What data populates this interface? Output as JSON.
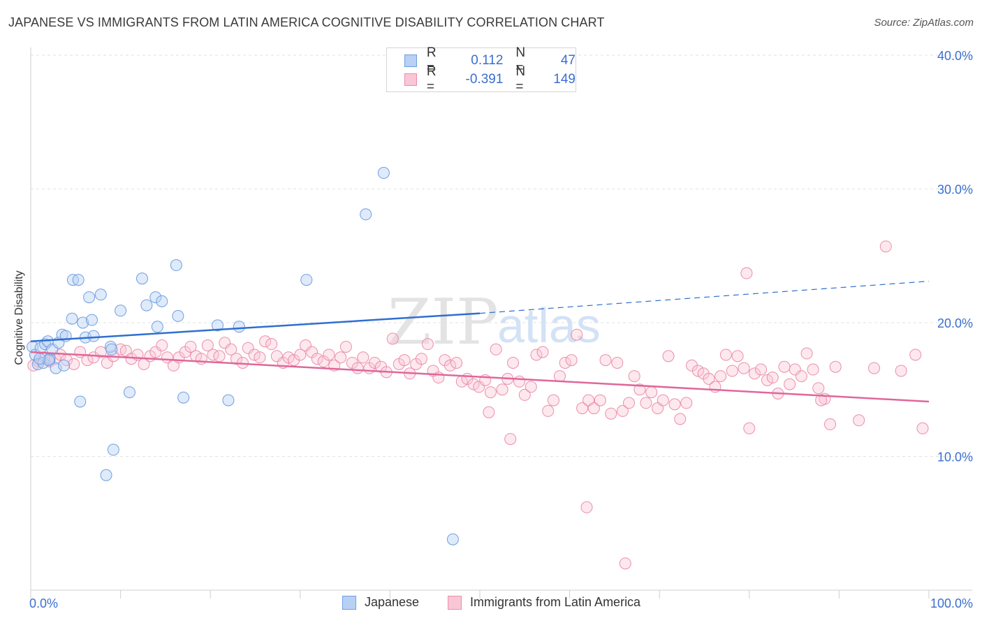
{
  "title": "JAPANESE VS IMMIGRANTS FROM LATIN AMERICA COGNITIVE DISABILITY CORRELATION CHART",
  "source": "Source: ZipAtlas.com",
  "watermark": {
    "zip": "ZIP",
    "atlas": "atlas"
  },
  "legend": {
    "rows": [
      {
        "r_label": "R =",
        "r_value": "0.112",
        "n_label": "N =",
        "n_value": "47",
        "fill": "#b8d0f4",
        "stroke": "#6f9fe0"
      },
      {
        "r_label": "R =",
        "r_value": "-0.391",
        "n_label": "N =",
        "n_value": "149",
        "fill": "#f9c6d5",
        "stroke": "#ea8eac"
      }
    ]
  },
  "bottom_legend": [
    {
      "label": "Japanese",
      "fill": "#b8d0f4",
      "stroke": "#6f9fe0"
    },
    {
      "label": "Immigrants from Latin America",
      "fill": "#f9c6d5",
      "stroke": "#ea8eac"
    }
  ],
  "chart_data": {
    "type": "scatter",
    "title": "JAPANESE VS IMMIGRANTS FROM LATIN AMERICA COGNITIVE DISABILITY CORRELATION CHART",
    "xlabel": "",
    "ylabel": "Cognitive Disability",
    "xlim": [
      0,
      100
    ],
    "ylim": [
      0,
      40
    ],
    "x_tick_labels": [
      {
        "value": 0,
        "label": "0.0%"
      },
      {
        "value": 100,
        "label": "100.0%"
      }
    ],
    "y_tick_labels": [
      {
        "value": 10,
        "label": "10.0%"
      },
      {
        "value": 20,
        "label": "20.0%"
      },
      {
        "value": 30,
        "label": "30.0%"
      },
      {
        "value": 40,
        "label": "40.0%"
      }
    ],
    "grid": true,
    "colors": {
      "japanese": "#6f9fe0",
      "latin": "#ea8eac",
      "japanese_line": "#2f6fd0",
      "latin_line": "#e0679a",
      "tick_text": "#3a6fd0"
    },
    "series": [
      {
        "name": "Japanese",
        "points": [
          [
            0.2,
            18.2
          ],
          [
            0.5,
            17.6
          ],
          [
            0.8,
            16.9
          ],
          [
            1.1,
            18.1
          ],
          [
            1.4,
            17.0
          ],
          [
            1.6,
            18.4
          ],
          [
            1.9,
            18.6
          ],
          [
            2.1,
            17.3
          ],
          [
            2.4,
            18.0
          ],
          [
            2.8,
            16.6
          ],
          [
            3.1,
            18.5
          ],
          [
            3.5,
            19.1
          ],
          [
            3.7,
            16.8
          ],
          [
            3.9,
            19.0
          ],
          [
            4.6,
            20.3
          ],
          [
            4.7,
            23.2
          ],
          [
            5.3,
            23.2
          ],
          [
            5.5,
            14.1
          ],
          [
            5.8,
            20.0
          ],
          [
            6.1,
            18.9
          ],
          [
            6.5,
            21.9
          ],
          [
            6.8,
            20.2
          ],
          [
            7.0,
            19.0
          ],
          [
            7.8,
            22.1
          ],
          [
            8.4,
            8.6
          ],
          [
            8.9,
            18.2
          ],
          [
            9.2,
            10.5
          ],
          [
            10.0,
            20.9
          ],
          [
            11.0,
            14.8
          ],
          [
            12.4,
            23.3
          ],
          [
            12.9,
            21.3
          ],
          [
            13.9,
            21.9
          ],
          [
            14.1,
            19.7
          ],
          [
            14.6,
            21.6
          ],
          [
            16.2,
            24.3
          ],
          [
            16.4,
            20.5
          ],
          [
            17.0,
            14.4
          ],
          [
            20.8,
            19.8
          ],
          [
            22.0,
            14.2
          ],
          [
            23.2,
            19.7
          ],
          [
            30.7,
            23.2
          ],
          [
            37.3,
            28.1
          ],
          [
            39.3,
            31.2
          ],
          [
            47.0,
            3.8
          ],
          [
            2.0,
            17.2
          ],
          [
            9.0,
            18.0
          ],
          [
            1.0,
            17.3
          ]
        ]
      },
      {
        "name": "Immigrants from Latin America",
        "points": [
          [
            0.3,
            16.8
          ],
          [
            0.9,
            17.1
          ],
          [
            1.5,
            17.4
          ],
          [
            2.1,
            17.1
          ],
          [
            2.7,
            17.3
          ],
          [
            3.3,
            17.6
          ],
          [
            4.0,
            17.2
          ],
          [
            4.8,
            16.9
          ],
          [
            5.5,
            17.8
          ],
          [
            6.3,
            17.2
          ],
          [
            7.0,
            17.4
          ],
          [
            7.8,
            17.8
          ],
          [
            8.5,
            17.0
          ],
          [
            9.2,
            17.5
          ],
          [
            10.0,
            18.0
          ],
          [
            10.6,
            17.9
          ],
          [
            11.2,
            17.3
          ],
          [
            11.9,
            17.6
          ],
          [
            12.6,
            16.9
          ],
          [
            13.3,
            17.5
          ],
          [
            13.9,
            17.8
          ],
          [
            14.6,
            18.3
          ],
          [
            15.2,
            17.4
          ],
          [
            15.9,
            16.8
          ],
          [
            16.5,
            17.4
          ],
          [
            17.2,
            17.8
          ],
          [
            17.8,
            18.2
          ],
          [
            18.4,
            17.5
          ],
          [
            19.0,
            17.3
          ],
          [
            19.7,
            18.3
          ],
          [
            20.3,
            17.6
          ],
          [
            21.0,
            17.5
          ],
          [
            21.6,
            18.5
          ],
          [
            22.3,
            18.0
          ],
          [
            22.9,
            17.3
          ],
          [
            23.6,
            17.0
          ],
          [
            24.2,
            18.1
          ],
          [
            24.9,
            17.6
          ],
          [
            25.5,
            17.4
          ],
          [
            26.1,
            18.6
          ],
          [
            26.8,
            18.4
          ],
          [
            27.4,
            17.5
          ],
          [
            28.1,
            17.0
          ],
          [
            28.7,
            17.4
          ],
          [
            29.3,
            17.2
          ],
          [
            30.0,
            17.6
          ],
          [
            30.6,
            18.3
          ],
          [
            31.3,
            17.8
          ],
          [
            31.9,
            17.3
          ],
          [
            32.6,
            17.1
          ],
          [
            33.2,
            17.6
          ],
          [
            33.8,
            16.8
          ],
          [
            34.5,
            17.4
          ],
          [
            35.1,
            18.2
          ],
          [
            35.8,
            17.0
          ],
          [
            36.4,
            16.6
          ],
          [
            37.0,
            17.4
          ],
          [
            37.7,
            16.6
          ],
          [
            38.3,
            17.0
          ],
          [
            39.0,
            16.7
          ],
          [
            39.6,
            16.3
          ],
          [
            40.3,
            18.8
          ],
          [
            41.0,
            16.9
          ],
          [
            41.6,
            17.2
          ],
          [
            42.2,
            16.2
          ],
          [
            42.9,
            16.9
          ],
          [
            43.5,
            17.3
          ],
          [
            44.2,
            18.4
          ],
          [
            44.8,
            16.4
          ],
          [
            45.4,
            15.9
          ],
          [
            46.1,
            17.2
          ],
          [
            46.7,
            16.8
          ],
          [
            47.4,
            17.0
          ],
          [
            48.0,
            15.6
          ],
          [
            48.6,
            15.8
          ],
          [
            49.3,
            15.4
          ],
          [
            49.9,
            15.2
          ],
          [
            50.6,
            15.7
          ],
          [
            51.2,
            14.8
          ],
          [
            51.8,
            18.0
          ],
          [
            52.5,
            15.0
          ],
          [
            53.1,
            15.8
          ],
          [
            53.7,
            17.0
          ],
          [
            54.4,
            15.6
          ],
          [
            55.0,
            14.6
          ],
          [
            55.7,
            15.2
          ],
          [
            56.3,
            17.6
          ],
          [
            57.0,
            17.8
          ],
          [
            57.6,
            13.4
          ],
          [
            58.2,
            14.2
          ],
          [
            58.9,
            16.0
          ],
          [
            59.5,
            17.0
          ],
          [
            60.2,
            17.2
          ],
          [
            60.8,
            19.1
          ],
          [
            61.4,
            13.6
          ],
          [
            62.1,
            14.2
          ],
          [
            62.7,
            13.6
          ],
          [
            63.4,
            14.2
          ],
          [
            64.0,
            17.2
          ],
          [
            64.6,
            13.2
          ],
          [
            65.3,
            17.0
          ],
          [
            65.9,
            13.4
          ],
          [
            66.6,
            14.0
          ],
          [
            67.2,
            16.0
          ],
          [
            67.8,
            15.0
          ],
          [
            68.5,
            14.0
          ],
          [
            69.1,
            14.8
          ],
          [
            69.8,
            13.6
          ],
          [
            70.4,
            14.2
          ],
          [
            71.0,
            17.5
          ],
          [
            71.7,
            13.9
          ],
          [
            72.3,
            12.8
          ],
          [
            73.0,
            14.0
          ],
          [
            73.6,
            16.8
          ],
          [
            74.3,
            16.4
          ],
          [
            74.9,
            16.2
          ],
          [
            75.5,
            15.8
          ],
          [
            76.2,
            15.2
          ],
          [
            76.8,
            16.0
          ],
          [
            77.4,
            17.6
          ],
          [
            78.1,
            16.4
          ],
          [
            78.7,
            17.5
          ],
          [
            79.4,
            16.6
          ],
          [
            80.0,
            12.1
          ],
          [
            80.6,
            16.2
          ],
          [
            81.3,
            16.5
          ],
          [
            82.0,
            15.7
          ],
          [
            82.6,
            15.9
          ],
          [
            83.2,
            14.7
          ],
          [
            83.9,
            16.7
          ],
          [
            84.5,
            15.4
          ],
          [
            85.1,
            16.5
          ],
          [
            85.8,
            16.0
          ],
          [
            86.4,
            17.7
          ],
          [
            87.1,
            16.5
          ],
          [
            87.7,
            15.1
          ],
          [
            88.4,
            14.3
          ],
          [
            89.0,
            12.4
          ],
          [
            89.6,
            16.7
          ],
          [
            92.2,
            12.7
          ],
          [
            93.9,
            16.6
          ],
          [
            95.2,
            25.7
          ],
          [
            96.9,
            16.4
          ],
          [
            98.5,
            17.6
          ],
          [
            99.3,
            12.1
          ],
          [
            61.9,
            6.2
          ],
          [
            66.2,
            2.0
          ],
          [
            79.7,
            23.7
          ],
          [
            53.4,
            11.3
          ],
          [
            51.0,
            13.3
          ],
          [
            88.0,
            14.2
          ]
        ]
      }
    ],
    "trend_lines": [
      {
        "series": "Japanese",
        "solid_from": [
          0,
          18.6
        ],
        "solid_to": [
          50,
          20.7
        ],
        "dashed_to": [
          100,
          23.1
        ]
      },
      {
        "series": "Immigrants from Latin America",
        "from": [
          0,
          17.8
        ],
        "to": [
          100,
          14.1
        ]
      }
    ]
  }
}
